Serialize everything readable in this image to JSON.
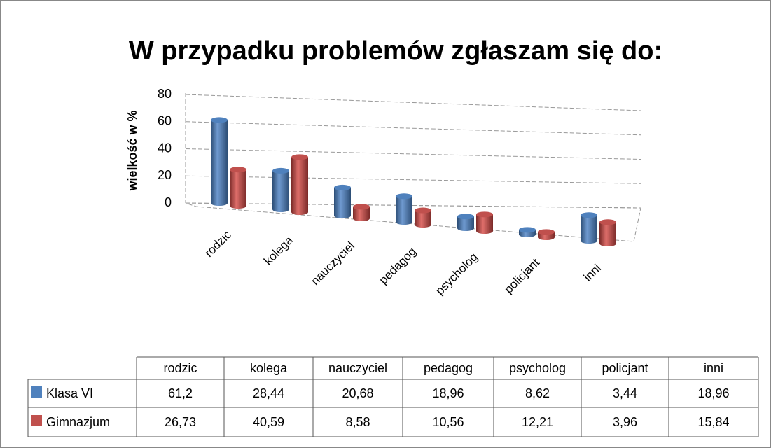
{
  "chart_data": {
    "type": "bar3d",
    "title": "W przypadku problemów zgłaszam się do:",
    "y_label": "wielkość w %",
    "categories": [
      "rodzic",
      "kolega",
      "nauczyciel",
      "pedagog",
      "psycholog",
      "policjant",
      "inni"
    ],
    "series": [
      {
        "name": "Klasa VI",
        "color": "#4f81bd",
        "values": [
          61.2,
          28.44,
          20.68,
          18.96,
          8.62,
          3.44,
          18.96
        ],
        "value_labels": [
          "61,2",
          "28,44",
          "20,68",
          "18,96",
          "8,62",
          "3,44",
          "18,96"
        ]
      },
      {
        "name": "Gimnazjum",
        "color": "#c0504d",
        "values": [
          26.73,
          40.59,
          8.58,
          10.56,
          12.21,
          3.96,
          15.84
        ],
        "value_labels": [
          "26,73",
          "40,59",
          "8,58",
          "10,56",
          "12,21",
          "3,96",
          "15,84"
        ]
      }
    ],
    "ylim": [
      0,
      80
    ],
    "yticks": [
      0,
      20,
      40,
      60,
      80
    ],
    "grid": true,
    "data_table": true
  }
}
